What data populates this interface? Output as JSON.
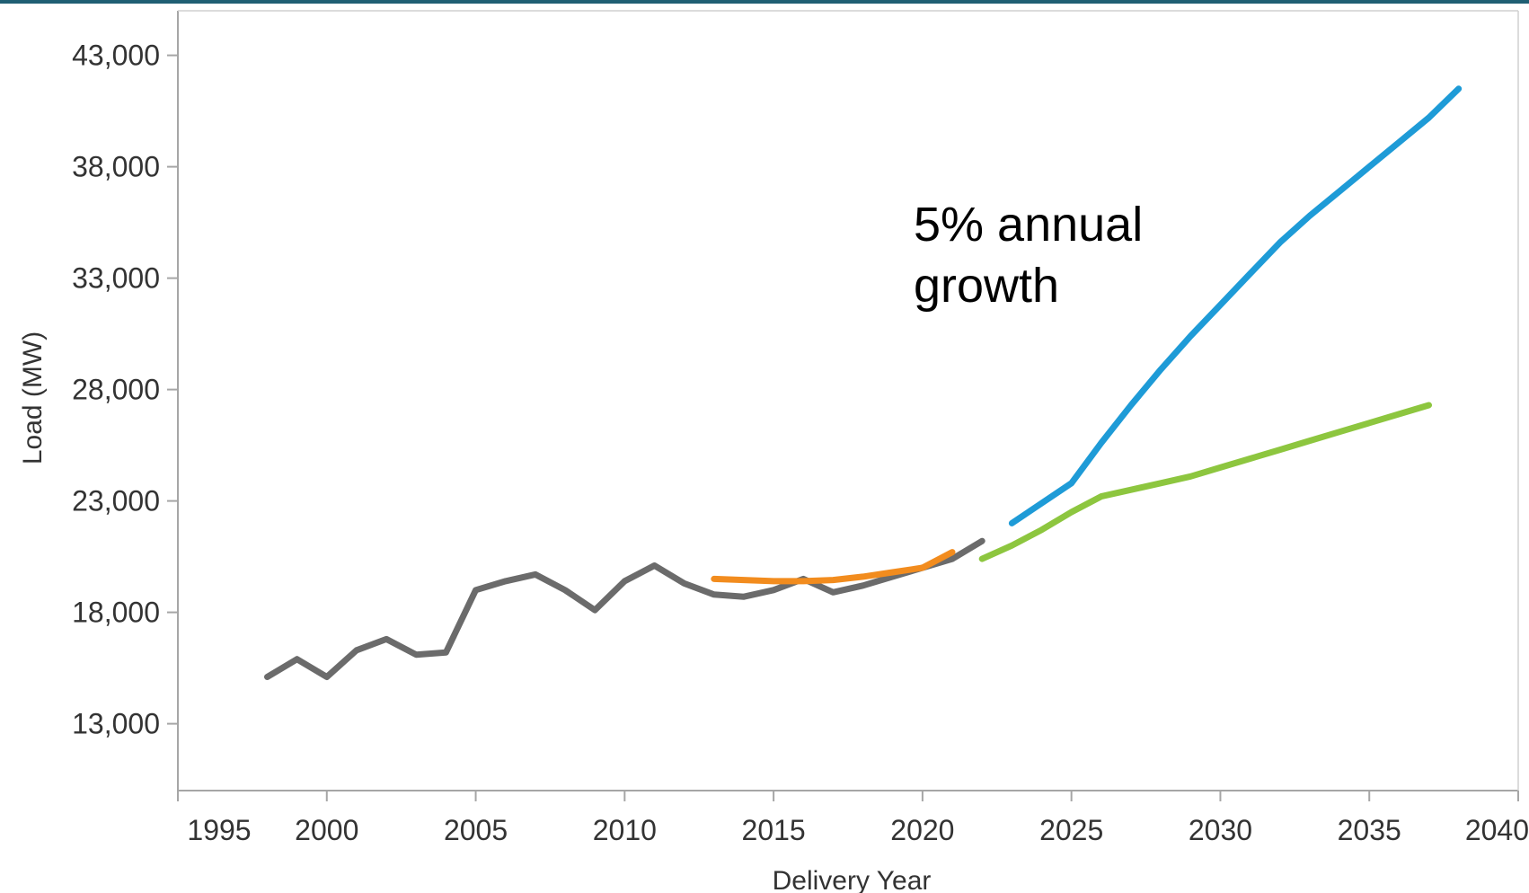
{
  "chart_data": {
    "type": "line",
    "title": "",
    "xlabel": "Delivery Year",
    "ylabel": "Load (MW)",
    "xlim": [
      1995,
      2040
    ],
    "ylim": [
      10000,
      45000
    ],
    "x_ticks": [
      1995,
      2000,
      2005,
      2010,
      2015,
      2020,
      2025,
      2030,
      2035,
      2040
    ],
    "y_ticks": [
      13000,
      18000,
      23000,
      28000,
      33000,
      38000,
      43000
    ],
    "x_tick_labels": [
      "1995",
      "2000",
      "2005",
      "2010",
      "2015",
      "2020",
      "2025",
      "2030",
      "2035",
      "2040"
    ],
    "y_tick_labels": [
      "13,000",
      "18,000",
      "23,000",
      "28,000",
      "33,000",
      "38,000",
      "43,000"
    ],
    "grid": false,
    "legend": "none",
    "annotations": [
      {
        "lines": [
          "5% annual",
          "growth"
        ]
      }
    ],
    "series": [
      {
        "color": "#6b6b6b",
        "x": [
          1998,
          1999,
          2000,
          2001,
          2002,
          2003,
          2004,
          2005,
          2006,
          2007,
          2008,
          2009,
          2010,
          2011,
          2012,
          2013,
          2014,
          2015,
          2016,
          2017,
          2018,
          2019,
          2020,
          2021,
          2022
        ],
        "y": [
          15100,
          15900,
          15100,
          16300,
          16800,
          16100,
          16200,
          19000,
          19400,
          19700,
          19000,
          18100,
          19400,
          20100,
          19300,
          18800,
          18700,
          19000,
          19500,
          18900,
          19200,
          19600,
          20000,
          20400,
          21200
        ]
      },
      {
        "color": "#f28c1e",
        "x": [
          2013,
          2014,
          2015,
          2016,
          2017,
          2018,
          2019,
          2020,
          2021
        ],
        "y": [
          19500,
          19450,
          19400,
          19400,
          19450,
          19600,
          19800,
          20000,
          20700
        ]
      },
      {
        "color": "#8dc63f",
        "x": [
          2022,
          2023,
          2024,
          2025,
          2026,
          2027,
          2028,
          2029,
          2030,
          2031,
          2032,
          2033,
          2034,
          2035,
          2036,
          2037
        ],
        "y": [
          20400,
          21000,
          21700,
          22500,
          23200,
          23500,
          23800,
          24100,
          24500,
          24900,
          25300,
          25700,
          26100,
          26500,
          26900,
          27300
        ]
      },
      {
        "color": "#1e9bd7",
        "x": [
          2023,
          2024,
          2025,
          2026,
          2027,
          2028,
          2029,
          2030,
          2031,
          2032,
          2033,
          2034,
          2035,
          2036,
          2037,
          2038
        ],
        "y": [
          22000,
          22900,
          23800,
          25600,
          27300,
          28900,
          30400,
          31800,
          33200,
          34600,
          35800,
          36900,
          38000,
          39100,
          40200,
          41500
        ]
      }
    ]
  }
}
